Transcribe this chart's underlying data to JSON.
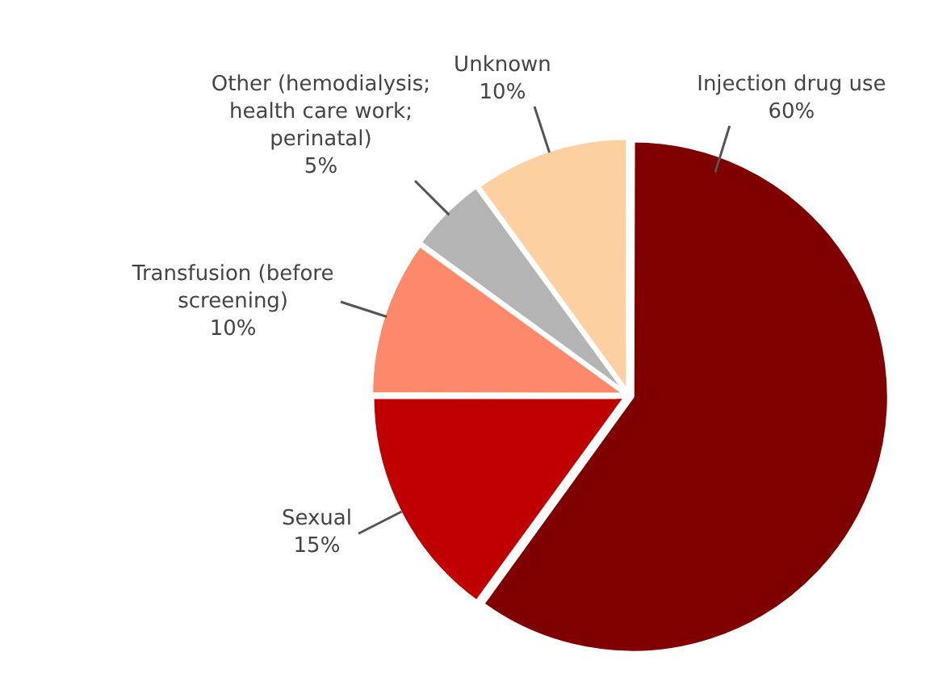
{
  "chart_data": {
    "type": "pie",
    "categories": [
      "Injection drug use",
      "Sexual",
      "Transfusion (before screening)",
      "Other (hemodialysis; health care work; perinatal)",
      "Unknown"
    ],
    "values": [
      60,
      15,
      10,
      5,
      10
    ],
    "value_labels": [
      "60%",
      "15%",
      "10%",
      "5%",
      "10%"
    ],
    "colors": [
      "#800000",
      "#c00000",
      "#fc8a6a",
      "#b4b4b4",
      "#fdd0a2"
    ],
    "legend": false
  }
}
